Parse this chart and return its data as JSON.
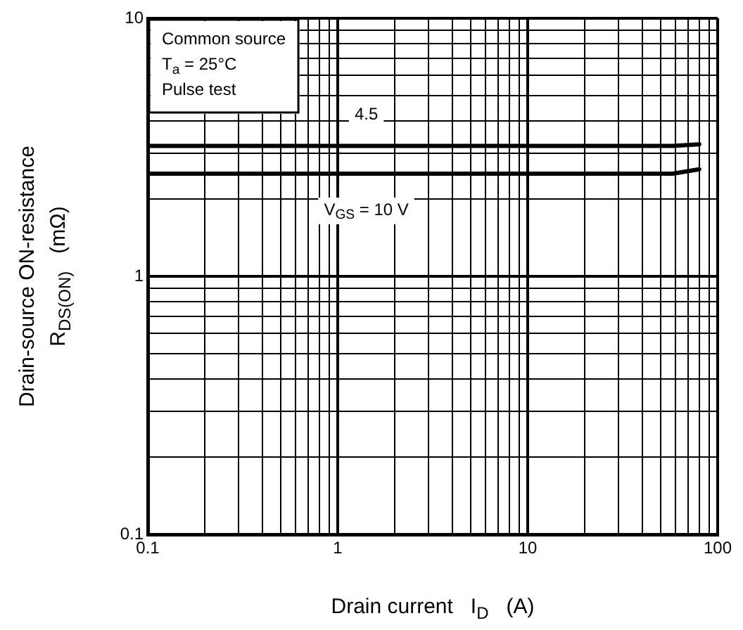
{
  "chart_data": {
    "type": "line",
    "xlabel": "Drain current   I$_{D}$   (A)",
    "ylabel": "Drain-source ON-resistance\nR$_{DS(ON)}$   (mΩ)",
    "annotations": [
      "Common source",
      "T$_{a}$ = 25°C",
      "Pulse test"
    ],
    "series": [
      {
        "name": "4.5",
        "color": "#000000",
        "x": [
          0.1,
          58,
          80
        ],
        "values": [
          3.2,
          3.2,
          3.25
        ]
      },
      {
        "name": "V$_{GS}$ = 10 V",
        "color": "#000000",
        "x": [
          0.1,
          58,
          80
        ],
        "values": [
          2.5,
          2.5,
          2.6
        ]
      }
    ],
    "log": "xy",
    "xlim": [
      0.1,
      100
    ],
    "ylim": [
      0.1,
      10
    ],
    "xticks": [
      0.1,
      {
        "value": 0.2,
        "label": null
      },
      {
        "value": 0.3,
        "label": null
      },
      {
        "value": 0.4,
        "label": null
      },
      {
        "value": 0.5,
        "label": null
      },
      {
        "value": 0.6,
        "label": null
      },
      {
        "value": 0.7,
        "label": null
      },
      {
        "value": 0.8,
        "label": null
      },
      {
        "value": 0.9,
        "label": null
      },
      1,
      {
        "value": 2,
        "label": null
      },
      {
        "value": 3,
        "label": null
      },
      {
        "value": 4,
        "label": null
      },
      {
        "value": 5,
        "label": null
      },
      {
        "value": 6,
        "label": null
      },
      {
        "value": 7,
        "label": null
      },
      {
        "value": 8,
        "label": null
      },
      {
        "value": 9,
        "label": null
      },
      10,
      {
        "value": 20,
        "label": null
      },
      {
        "value": 30,
        "label": null
      },
      {
        "value": 40,
        "label": null
      },
      {
        "value": 50,
        "label": null
      },
      {
        "value": 60,
        "label": null
      },
      {
        "value": 70,
        "label": null
      },
      {
        "value": 80,
        "label": null
      },
      {
        "value": 90,
        "label": null
      },
      100
    ],
    "yticks": [
      0.1,
      {
        "value": 0.2,
        "label": null
      },
      {
        "value": 0.3,
        "label": null
      },
      {
        "value": 0.4,
        "label": null
      },
      {
        "value": 0.5,
        "label": null
      },
      {
        "value": 0.6,
        "label": null
      },
      {
        "value": 0.7,
        "label": null
      },
      {
        "value": 0.8,
        "label": null
      },
      {
        "value": 0.9,
        "label": null
      },
      1,
      {
        "value": 2,
        "label": null
      },
      {
        "value": 3,
        "label": null
      },
      {
        "value": 4,
        "label": null
      },
      {
        "value": 5,
        "label": null
      },
      {
        "value": 6,
        "label": null
      },
      {
        "value": 7,
        "label": null
      },
      {
        "value": 8,
        "label": null
      },
      {
        "value": 9,
        "label": null
      },
      10
    ],
    "grid": true,
    "legend": false,
    "marker": "none",
    "line_style": "solid"
  }
}
